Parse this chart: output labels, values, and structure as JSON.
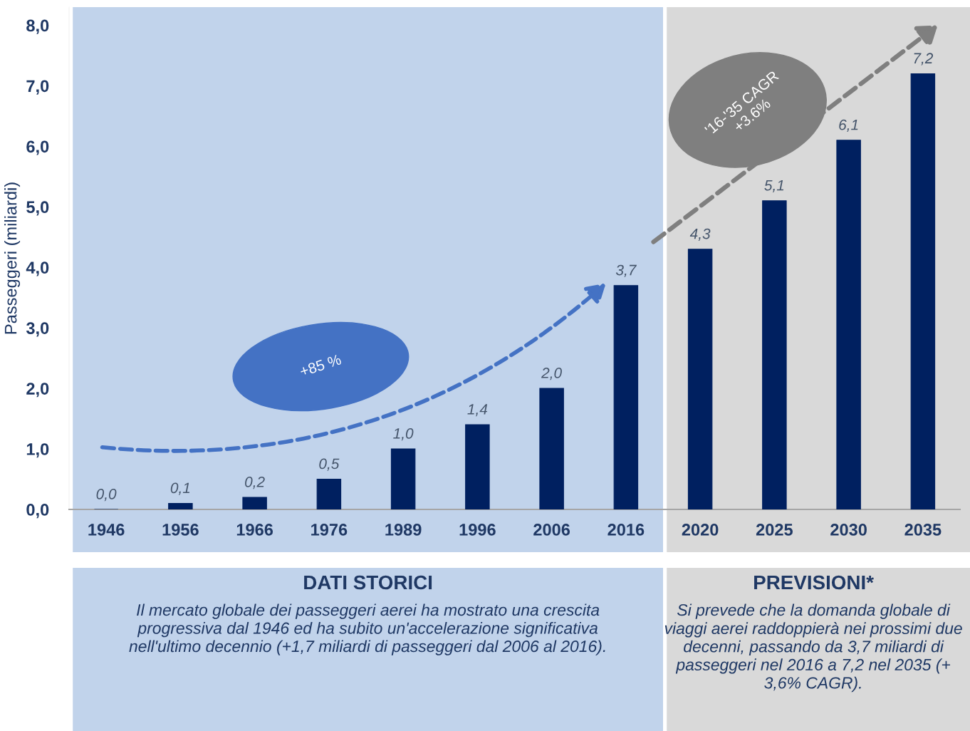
{
  "chart_data": {
    "type": "bar",
    "ylabel": "Passeggeri (miliardi)",
    "categories": [
      "1946",
      "1956",
      "1966",
      "1976",
      "1989",
      "1996",
      "2006",
      "2016",
      "2020",
      "2025",
      "2030",
      "2035"
    ],
    "values": [
      0.0,
      0.1,
      0.2,
      0.5,
      1.0,
      1.4,
      2.0,
      3.7,
      4.3,
      5.1,
      6.1,
      7.2
    ],
    "value_labels": [
      "0,0",
      "0,1",
      "0,2",
      "0,5",
      "1,0",
      "1,4",
      "2,0",
      "3,7",
      "4,3",
      "5,1",
      "6,1",
      "7,2"
    ],
    "color": "#002060",
    "ylim": [
      0,
      8.3
    ],
    "yticks": [
      {
        "value": 0,
        "label": "0,0"
      },
      {
        "value": 1,
        "label": "1,0"
      },
      {
        "value": 2,
        "label": "2,0"
      },
      {
        "value": 3,
        "label": "3,0"
      },
      {
        "value": 4,
        "label": "4,0"
      },
      {
        "value": 5,
        "label": "5,0"
      },
      {
        "value": 6,
        "label": "6,0"
      },
      {
        "value": 7,
        "label": "7,0"
      },
      {
        "value": 8,
        "label": "8,0"
      }
    ],
    "grid": false,
    "bands": [
      {
        "axis": "x",
        "from": "1946",
        "to": "2016",
        "label": "DATI STORICI",
        "color": "#c1d3eb"
      },
      {
        "axis": "x",
        "from": "2020",
        "to": "2035",
        "label": "PREVISIONI*",
        "color": "#d9d9d9"
      }
    ],
    "annotations": [
      "+85 %",
      "'16-'35 CAGR\n+3.6%",
      "Il mercato globale dei passeggeri aerei ha mostrato una crescita\nprogressiva dal 1946 ed ha subito un'accelerazione significativa\nnell'ultimo decennio (+1,7 miliardi di passeggeri dal 2006 al 2016).",
      "Si prevede che la domanda globale di\nviaggi aerei raddoppierà nei prossimi due\ndecenni, passando da 3,7 miliardi di\npasseggeri nel 2016 a 7,2 nel 2035 (+\n3,6% CAGR)."
    ]
  }
}
